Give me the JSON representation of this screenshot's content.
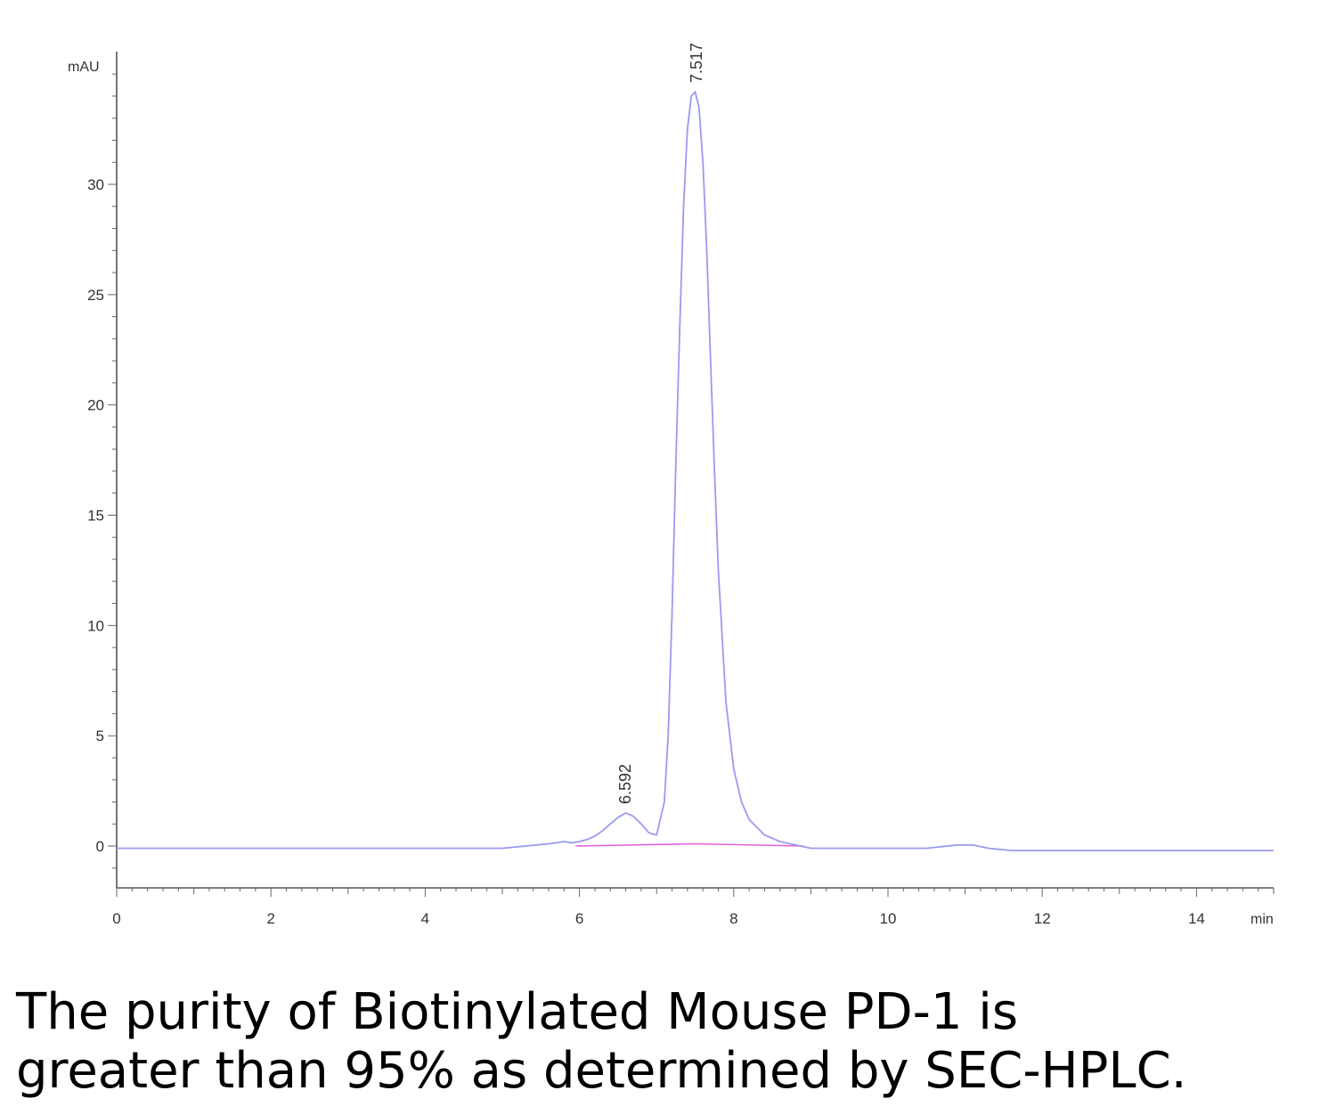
{
  "chart_data": {
    "type": "line",
    "title": "",
    "ylabel": "mAU",
    "xlabel": "min",
    "xlim": [
      0,
      15
    ],
    "ylim": [
      -2,
      35
    ],
    "x_ticks": [
      0,
      2,
      4,
      6,
      8,
      10,
      12,
      14
    ],
    "y_ticks": [
      0,
      5,
      10,
      15,
      20,
      25,
      30
    ],
    "grid": false,
    "signal_color": "#9a9af0",
    "baseline_color": "#e060e0",
    "series": [
      {
        "x": [
          0,
          1,
          2,
          3,
          4,
          5,
          5.3,
          5.6,
          5.8,
          5.9,
          6.0,
          6.1,
          6.2,
          6.3,
          6.4,
          6.5,
          6.6,
          6.7,
          6.8,
          6.9,
          7.0,
          7.1,
          7.15,
          7.2,
          7.25,
          7.3,
          7.35,
          7.4,
          7.45,
          7.5,
          7.55,
          7.6,
          7.65,
          7.7,
          7.75,
          7.8,
          7.9,
          8.0,
          8.1,
          8.2,
          8.4,
          8.6,
          8.8,
          9.0,
          9.5,
          10.0,
          10.5,
          10.9,
          11.1,
          11.3,
          11.6,
          12.0,
          13.0,
          14.0,
          15.0
        ],
        "y": [
          -0.1,
          -0.1,
          -0.1,
          -0.1,
          -0.1,
          -0.1,
          0.0,
          0.1,
          0.2,
          0.15,
          0.2,
          0.3,
          0.45,
          0.7,
          1.0,
          1.3,
          1.5,
          1.35,
          1.0,
          0.6,
          0.5,
          2.0,
          5.0,
          10.5,
          17.5,
          23.5,
          29.0,
          32.5,
          34.0,
          34.2,
          33.5,
          31.0,
          27.0,
          22.0,
          17.0,
          12.5,
          6.5,
          3.5,
          2.0,
          1.2,
          0.5,
          0.2,
          0.05,
          -0.1,
          -0.1,
          -0.1,
          -0.1,
          0.05,
          0.05,
          -0.1,
          -0.2,
          -0.2,
          -0.2,
          -0.2,
          -0.2
        ]
      }
    ],
    "baseline": {
      "x": [
        5.95,
        7.5,
        8.9
      ],
      "y": [
        0.0,
        0.1,
        0.0
      ]
    },
    "peaks": [
      {
        "label": "6.592",
        "x": 6.592,
        "y": 1.5
      },
      {
        "label": "7.517",
        "x": 7.517,
        "y": 34.2
      }
    ]
  },
  "caption": {
    "line1": "The purity of Biotinylated Mouse PD-1 is",
    "line2": "greater than 95% as determined by SEC-HPLC."
  }
}
